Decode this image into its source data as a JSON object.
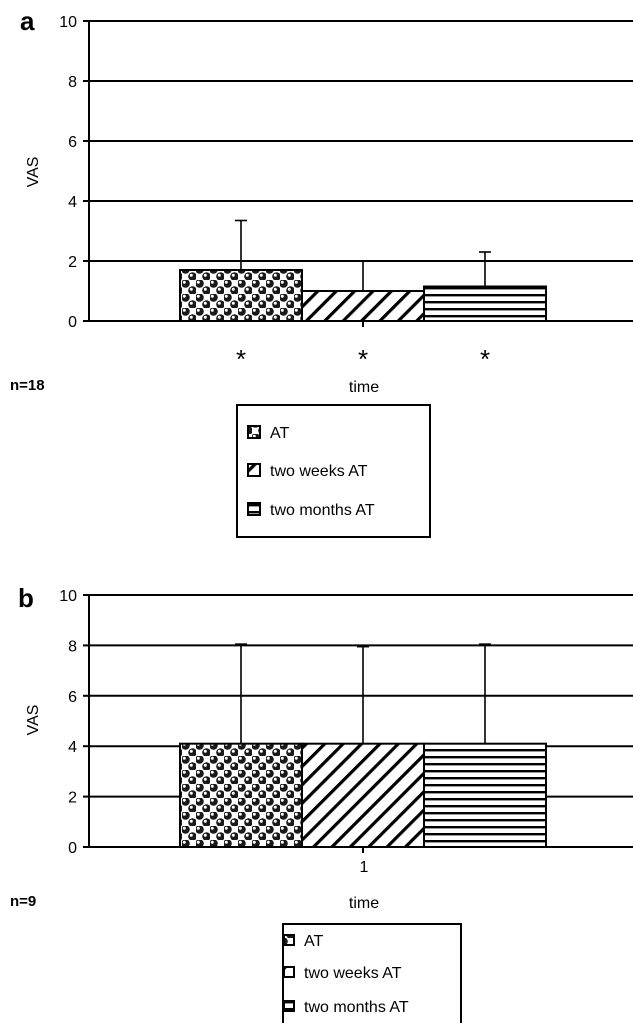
{
  "chart_data": [
    {
      "panel_label": "a",
      "type": "bar",
      "ylabel": "VAS",
      "xlabel": "time",
      "ylim": [
        0,
        10
      ],
      "yticks": [
        0,
        2,
        4,
        6,
        8,
        10
      ],
      "grid": true,
      "category_label": "",
      "n_label": "n=18",
      "series": [
        {
          "name": "AT",
          "value": 1.7,
          "error": 1.65,
          "annotation": "*",
          "pattern": "dots"
        },
        {
          "name": "two weeks AT",
          "value": 1.0,
          "error": 1.0,
          "annotation": "*",
          "pattern": "diagonal"
        },
        {
          "name": "two months AT",
          "value": 1.15,
          "error": 1.15,
          "annotation": "*",
          "pattern": "horizontal"
        }
      ],
      "legend_position": "bottom"
    },
    {
      "panel_label": "b",
      "type": "bar",
      "ylabel": "VAS",
      "xlabel": "time",
      "ylim": [
        0,
        10
      ],
      "yticks": [
        0,
        2,
        4,
        6,
        8,
        10
      ],
      "grid": true,
      "category_label": "1",
      "n_label": "n=9",
      "series": [
        {
          "name": "AT",
          "value": 4.1,
          "error": 3.95,
          "annotation": "",
          "pattern": "dots"
        },
        {
          "name": "two weeks AT",
          "value": 4.1,
          "error": 3.85,
          "annotation": "",
          "pattern": "diagonal"
        },
        {
          "name": "two months AT",
          "value": 4.1,
          "error": 3.95,
          "annotation": "",
          "pattern": "horizontal"
        }
      ],
      "legend_position": "bottom"
    }
  ]
}
